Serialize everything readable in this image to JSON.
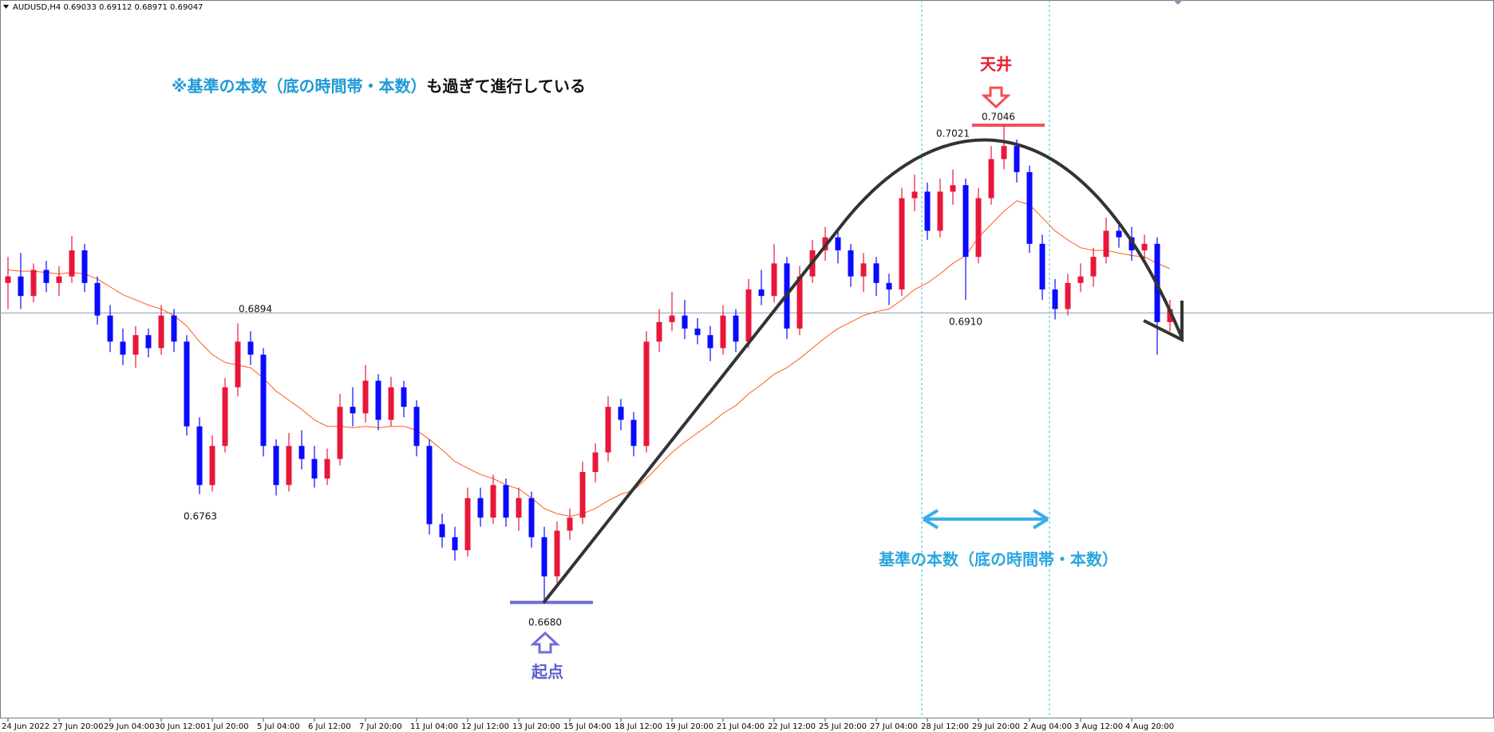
{
  "chart_data": {
    "type": "candlestick",
    "title": "AUDUSD,H4  0.69033 0.69112 0.68971 0.69047",
    "ylim": [
      0.6591,
      0.7142
    ],
    "up_color": "#e8173a",
    "down_color": "#0a0aff",
    "hline": 0.6902,
    "candles": [
      [
        0.6925,
        0.6945,
        0.6905,
        0.693
      ],
      [
        0.693,
        0.6948,
        0.6905,
        0.6915
      ],
      [
        0.6915,
        0.694,
        0.691,
        0.6935
      ],
      [
        0.6935,
        0.6942,
        0.6918,
        0.6925
      ],
      [
        0.6925,
        0.6938,
        0.6915,
        0.693
      ],
      [
        0.693,
        0.6961,
        0.6925,
        0.695
      ],
      [
        0.695,
        0.6955,
        0.6918,
        0.6925
      ],
      [
        0.6925,
        0.693,
        0.6893,
        0.69
      ],
      [
        0.69,
        0.6908,
        0.6872,
        0.688
      ],
      [
        0.688,
        0.689,
        0.6862,
        0.687
      ],
      [
        0.687,
        0.6892,
        0.686,
        0.6885
      ],
      [
        0.6885,
        0.689,
        0.6868,
        0.6875
      ],
      [
        0.6875,
        0.6908,
        0.687,
        0.69
      ],
      [
        0.69,
        0.6905,
        0.6872,
        0.688
      ],
      [
        0.688,
        0.6885,
        0.6808,
        0.6815
      ],
      [
        0.6815,
        0.6822,
        0.6763,
        0.677
      ],
      [
        0.677,
        0.6808,
        0.6765,
        0.68
      ],
      [
        0.68,
        0.6852,
        0.6795,
        0.6845
      ],
      [
        0.6845,
        0.6894,
        0.6838,
        0.688
      ],
      [
        0.688,
        0.6888,
        0.6862,
        0.687
      ],
      [
        0.687,
        0.6875,
        0.6792,
        0.68
      ],
      [
        0.68,
        0.6805,
        0.6762,
        0.677
      ],
      [
        0.677,
        0.681,
        0.6765,
        0.68
      ],
      [
        0.68,
        0.6812,
        0.6782,
        0.679
      ],
      [
        0.679,
        0.68,
        0.6768,
        0.6775
      ],
      [
        0.6775,
        0.6798,
        0.677,
        0.679
      ],
      [
        0.679,
        0.684,
        0.6785,
        0.683
      ],
      [
        0.683,
        0.6845,
        0.6815,
        0.6825
      ],
      [
        0.6825,
        0.6862,
        0.6818,
        0.685
      ],
      [
        0.685,
        0.6855,
        0.6812,
        0.682
      ],
      [
        0.682,
        0.6853,
        0.6815,
        0.6845
      ],
      [
        0.6845,
        0.685,
        0.6822,
        0.683
      ],
      [
        0.683,
        0.6835,
        0.6792,
        0.68
      ],
      [
        0.68,
        0.6805,
        0.6732,
        0.674
      ],
      [
        0.674,
        0.6748,
        0.6722,
        0.673
      ],
      [
        0.673,
        0.6738,
        0.6712,
        0.672
      ],
      [
        0.672,
        0.6768,
        0.6715,
        0.676
      ],
      [
        0.676,
        0.6768,
        0.6738,
        0.6745
      ],
      [
        0.6745,
        0.6778,
        0.674,
        0.677
      ],
      [
        0.677,
        0.6775,
        0.6738,
        0.6745
      ],
      [
        0.6745,
        0.6768,
        0.6735,
        0.676
      ],
      [
        0.676,
        0.6765,
        0.6722,
        0.673
      ],
      [
        0.673,
        0.6738,
        0.668,
        0.67
      ],
      [
        0.67,
        0.6742,
        0.6695,
        0.6735
      ],
      [
        0.6735,
        0.6752,
        0.6728,
        0.6745
      ],
      [
        0.6745,
        0.6788,
        0.674,
        0.678
      ],
      [
        0.678,
        0.6802,
        0.6772,
        0.6795
      ],
      [
        0.6795,
        0.6838,
        0.6788,
        0.683
      ],
      [
        0.683,
        0.6836,
        0.6812,
        0.682
      ],
      [
        0.682,
        0.6826,
        0.6792,
        0.68
      ],
      [
        0.68,
        0.6888,
        0.6795,
        0.688
      ],
      [
        0.688,
        0.6905,
        0.6872,
        0.6895
      ],
      [
        0.6895,
        0.6918,
        0.6888,
        0.69
      ],
      [
        0.69,
        0.6912,
        0.6882,
        0.689
      ],
      [
        0.689,
        0.6898,
        0.6878,
        0.6885
      ],
      [
        0.6885,
        0.6892,
        0.6865,
        0.6875
      ],
      [
        0.6875,
        0.6908,
        0.687,
        0.69
      ],
      [
        0.69,
        0.6905,
        0.6872,
        0.688
      ],
      [
        0.688,
        0.6928,
        0.6875,
        0.692
      ],
      [
        0.692,
        0.6935,
        0.6908,
        0.6915
      ],
      [
        0.6915,
        0.6955,
        0.691,
        0.694
      ],
      [
        0.694,
        0.6945,
        0.6882,
        0.689
      ],
      [
        0.689,
        0.6938,
        0.6885,
        0.693
      ],
      [
        0.693,
        0.6958,
        0.6925,
        0.695
      ],
      [
        0.695,
        0.6968,
        0.6942,
        0.696
      ],
      [
        0.696,
        0.6965,
        0.694,
        0.695
      ],
      [
        0.695,
        0.6955,
        0.6922,
        0.693
      ],
      [
        0.693,
        0.6948,
        0.6918,
        0.694
      ],
      [
        0.694,
        0.6945,
        0.6915,
        0.6925
      ],
      [
        0.6925,
        0.6932,
        0.6908,
        0.692
      ],
      [
        0.692,
        0.6998,
        0.6915,
        0.699
      ],
      [
        0.699,
        0.7008,
        0.698,
        0.6995
      ],
      [
        0.6995,
        0.7002,
        0.6958,
        0.6965
      ],
      [
        0.6965,
        0.7005,
        0.696,
        0.6995
      ],
      [
        0.6995,
        0.7012,
        0.6985,
        0.7
      ],
      [
        0.7,
        0.7005,
        0.6912,
        0.6945
      ],
      [
        0.6945,
        0.6998,
        0.694,
        0.699
      ],
      [
        0.699,
        0.703,
        0.6985,
        0.702
      ],
      [
        0.702,
        0.7046,
        0.7012,
        0.703
      ],
      [
        0.703,
        0.7035,
        0.7002,
        0.701
      ],
      [
        0.701,
        0.7015,
        0.6948,
        0.6955
      ],
      [
        0.6955,
        0.6962,
        0.6912,
        0.692
      ],
      [
        0.692,
        0.6928,
        0.6897,
        0.6905
      ],
      [
        0.6905,
        0.6932,
        0.69,
        0.6925
      ],
      [
        0.6925,
        0.694,
        0.6918,
        0.693
      ],
      [
        0.693,
        0.6952,
        0.6922,
        0.6945
      ],
      [
        0.6945,
        0.6975,
        0.694,
        0.6965
      ],
      [
        0.6965,
        0.6972,
        0.6952,
        0.696
      ],
      [
        0.696,
        0.6968,
        0.6942,
        0.695
      ],
      [
        0.695,
        0.6962,
        0.694,
        0.6955
      ],
      [
        0.6955,
        0.696,
        0.687,
        0.6895
      ],
      [
        0.6895,
        0.6912,
        0.6888,
        0.6905
      ]
    ],
    "ma": {
      "color": "#ff5a1f",
      "values": [
        0.6935,
        0.6934,
        0.6934,
        0.6933,
        0.6932,
        0.6933,
        0.6932,
        0.6928,
        0.6922,
        0.6916,
        0.6912,
        0.6908,
        0.6905,
        0.69,
        0.6892,
        0.688,
        0.687,
        0.6864,
        0.6862,
        0.686,
        0.6852,
        0.6842,
        0.6835,
        0.6828,
        0.682,
        0.6815,
        0.6815,
        0.6814,
        0.6815,
        0.6814,
        0.6815,
        0.6815,
        0.6812,
        0.6805,
        0.6797,
        0.6788,
        0.6783,
        0.6778,
        0.6775,
        0.677,
        0.6767,
        0.676,
        0.6752,
        0.6748,
        0.6746,
        0.6748,
        0.6752,
        0.6758,
        0.6763,
        0.6766,
        0.6775,
        0.6785,
        0.6795,
        0.6803,
        0.681,
        0.6817,
        0.6825,
        0.6831,
        0.684,
        0.6847,
        0.6855,
        0.686,
        0.6867,
        0.6875,
        0.6883,
        0.689,
        0.6895,
        0.69,
        0.6903,
        0.6905,
        0.6912,
        0.692,
        0.6925,
        0.6932,
        0.694,
        0.6946,
        0.696,
        0.697,
        0.698,
        0.6988,
        0.6985,
        0.6975,
        0.6965,
        0.6958,
        0.6952,
        0.695,
        0.695,
        0.6948,
        0.6946,
        0.6945,
        0.694,
        0.6936
      ]
    },
    "xticks": [
      {
        "value": 0,
        "label": "24 Jun 2022"
      },
      {
        "value": 4,
        "label": "27 Jun 20:00"
      },
      {
        "value": 8,
        "label": "29 Jun 04:00"
      },
      {
        "value": 12,
        "label": "30 Jun 12:00"
      },
      {
        "value": 16,
        "label": "1 Jul 20:00"
      },
      {
        "value": 20,
        "label": "5 Jul 04:00"
      },
      {
        "value": 24,
        "label": "6 Jul 12:00"
      },
      {
        "value": 28,
        "label": "7 Jul 20:00"
      },
      {
        "value": 32,
        "label": "11 Jul 04:00"
      },
      {
        "value": 36,
        "label": "12 Jul 12:00"
      },
      {
        "value": 40,
        "label": "13 Jul 20:00"
      },
      {
        "value": 44,
        "label": "15 Jul 04:00"
      },
      {
        "value": 48,
        "label": "18 Jul 12:00"
      },
      {
        "value": 52,
        "label": "19 Jul 20:00"
      },
      {
        "value": 56,
        "label": "21 Jul 04:00"
      },
      {
        "value": 60,
        "label": "22 Jul 12:00"
      },
      {
        "value": 64,
        "label": "25 Jul 20:00"
      },
      {
        "value": 68,
        "label": "27 Jul 04:00"
      },
      {
        "value": 72,
        "label": "28 Jul 12:00"
      },
      {
        "value": 76,
        "label": "29 Jul 20:00"
      },
      {
        "value": 80,
        "label": "2 Aug 04:00"
      },
      {
        "value": 84,
        "label": "3 Aug 12:00"
      },
      {
        "value": 88,
        "label": "4 Aug 20:00"
      }
    ],
    "price_labels": [
      0.6894,
      0.6763,
      {
        "value": 0.668,
        "label": "0.6680"
      },
      0.7046,
      0.7021,
      {
        "value": 0.691,
        "label": "0.6910"
      }
    ],
    "start_line": 0.668,
    "top_line": 0.7046,
    "annotations": {
      "note_prefix": "※",
      "note_highlight": "基準の本数（底の時間帯・本数）",
      "note_rest": "も過ぎて進行している",
      "top": "天井",
      "start": "起点",
      "span": "基準の本数（底の時間帯・本数）"
    }
  }
}
